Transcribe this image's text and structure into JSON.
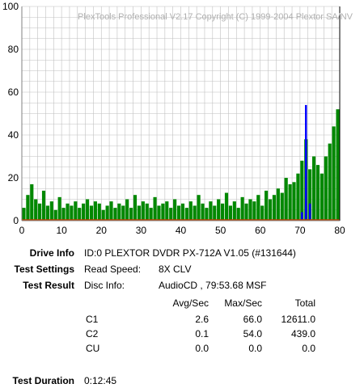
{
  "chart_data": {
    "type": "bar",
    "watermark": "PlexTools Professional V2.17 Copyright (C) 1999-2004 Plextor SA/NV",
    "xlim": [
      0,
      80
    ],
    "ylim": [
      0,
      100
    ],
    "x_ticks": [
      "0",
      "10",
      "20",
      "30",
      "40",
      "50",
      "60",
      "70",
      "80"
    ],
    "y_ticks": [
      "0",
      "20",
      "40",
      "60",
      "80",
      "100"
    ],
    "grid": true,
    "colors": {
      "c1": "#008800",
      "c2": "#0000ff",
      "cu": "#c04000",
      "grid": "#c0c0c0",
      "end_marker": "#000000"
    },
    "series": [
      {
        "name": "C1",
        "color": "#008800",
        "x": [
          0.5,
          1.5,
          2.5,
          3.5,
          4.5,
          5.5,
          6.5,
          7.5,
          8.5,
          9.5,
          10.5,
          11.5,
          12.5,
          13.5,
          14.5,
          15.5,
          16.5,
          17.5,
          18.5,
          19.5,
          20.5,
          21.5,
          22.5,
          23.5,
          24.5,
          25.5,
          26.5,
          27.5,
          28.5,
          29.5,
          30.5,
          31.5,
          32.5,
          33.5,
          34.5,
          35.5,
          36.5,
          37.5,
          38.5,
          39.5,
          40.5,
          41.5,
          42.5,
          43.5,
          44.5,
          45.5,
          46.5,
          47.5,
          48.5,
          49.5,
          50.5,
          51.5,
          52.5,
          53.5,
          54.5,
          55.5,
          56.5,
          57.5,
          58.5,
          59.5,
          60.5,
          61.5,
          62.5,
          63.5,
          64.5,
          65.5,
          66.5,
          67.5,
          68.5,
          69.5,
          70.5,
          71.5,
          72.5,
          73.5,
          74.5,
          75.5,
          76.5,
          77.5,
          78.5,
          79.5
        ],
        "values": [
          6,
          12,
          17,
          10,
          8,
          14,
          7,
          9,
          5,
          11,
          6,
          8,
          7,
          9,
          6,
          8,
          10,
          7,
          9,
          8,
          5,
          7,
          9,
          6,
          8,
          7,
          10,
          6,
          12,
          7,
          9,
          8,
          6,
          11,
          7,
          8,
          9,
          6,
          10,
          7,
          8,
          6,
          9,
          7,
          12,
          8,
          6,
          9,
          7,
          10,
          8,
          13,
          7,
          9,
          6,
          11,
          8,
          10,
          9,
          12,
          7,
          14,
          10,
          12,
          15,
          13,
          20,
          17,
          18,
          22,
          28,
          38,
          24,
          30,
          26,
          22,
          30,
          36,
          44,
          52
        ]
      },
      {
        "name": "C2",
        "color": "#0000ff",
        "x": [
          70.5,
          71.5,
          72.5
        ],
        "values": [
          4,
          54,
          8
        ]
      }
    ]
  },
  "info": {
    "drive_info_label": "Drive Info",
    "drive_info_value": "ID:0 PLEXTOR DVDR PX-712A V1.05 (#131644)",
    "test_settings_label": "Test Settings",
    "read_speed_label": "Read Speed:",
    "read_speed_value": "8X CLV",
    "test_result_label": "Test Result",
    "disc_info_label": "Disc Info:",
    "disc_info_value": "AudioCD , 79:53.68 MSF",
    "headers": {
      "avg": "Avg/Sec",
      "max": "Max/Sec",
      "total": "Total"
    },
    "rows": [
      {
        "name": "C1",
        "avg": "2.6",
        "max": "66.0",
        "total": "12611.0"
      },
      {
        "name": "C2",
        "avg": "0.1",
        "max": "54.0",
        "total": "439.0"
      },
      {
        "name": "CU",
        "avg": "0.0",
        "max": "0.0",
        "total": "0.0"
      }
    ],
    "duration_label": "Test Duration",
    "duration_value": "0:12:45"
  }
}
